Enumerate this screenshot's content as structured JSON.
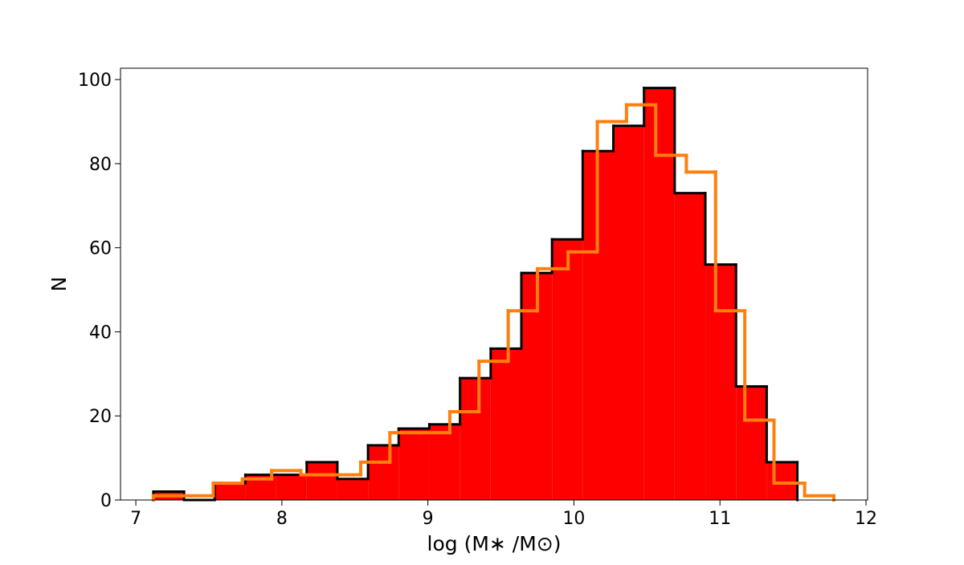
{
  "chart_data": {
    "type": "histogram",
    "xlabel": "log (M∗ /M⊙)",
    "ylabel": "N",
    "xlim": [
      6.895,
      12.011
    ],
    "ylim": [
      0,
      102.7
    ],
    "xticks": [
      7,
      8,
      9,
      10,
      11,
      12
    ],
    "yticks": [
      0,
      20,
      40,
      60,
      80,
      100
    ],
    "series": [
      {
        "histtype": "stepfilled",
        "color": "#ff0000",
        "edgecolor": "#000000",
        "bins": [
          7.12,
          7.33,
          7.54,
          7.75,
          7.96,
          8.17,
          8.38,
          8.59,
          8.8,
          9.01,
          9.22,
          9.43,
          9.64,
          9.85,
          10.06,
          10.27,
          10.48,
          10.69,
          10.9,
          11.11,
          11.32,
          11.53
        ],
        "values": [
          2,
          0,
          4,
          6,
          6,
          9,
          5,
          13,
          17,
          18,
          29,
          36,
          54,
          62,
          83,
          89,
          98,
          73,
          56,
          27,
          9
        ]
      },
      {
        "histtype": "step",
        "color": "#ff7f0e",
        "bins": [
          7.12,
          7.32,
          7.53,
          7.73,
          7.93,
          8.13,
          8.34,
          8.54,
          8.74,
          8.94,
          9.15,
          9.35,
          9.55,
          9.75,
          9.96,
          10.16,
          10.36,
          10.56,
          10.77,
          10.97,
          11.17,
          11.37,
          11.58,
          11.78
        ],
        "values": [
          1,
          1,
          4,
          5,
          7,
          6,
          6,
          9,
          16,
          16,
          21,
          33,
          45,
          55,
          59,
          90,
          94,
          82,
          78,
          45,
          19,
          4,
          1
        ]
      }
    ]
  }
}
